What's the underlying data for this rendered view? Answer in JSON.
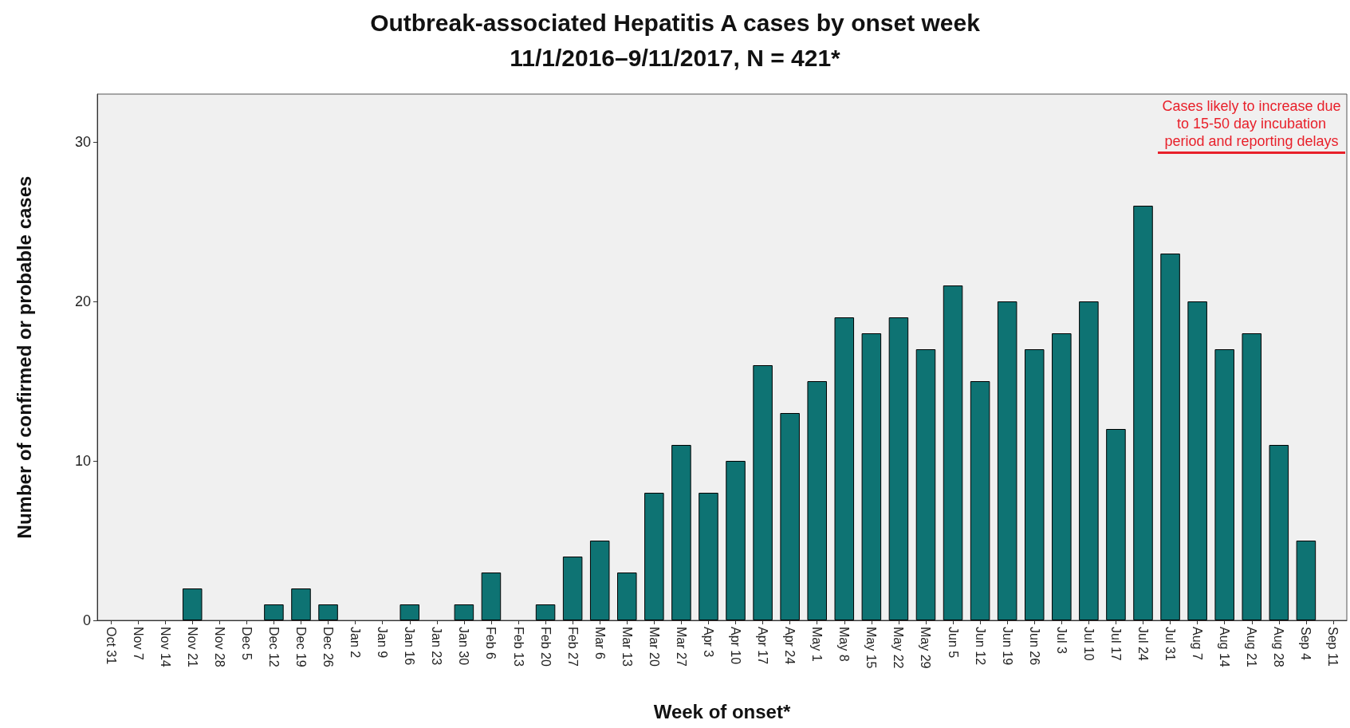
{
  "chart_data": {
    "type": "bar",
    "title": "Outbreak-associated Hepatitis A cases by onset week",
    "subtitle": "11/1/2016–9/11/2017, N = 421*",
    "xlabel": "Week of onset*",
    "ylabel": "Number of confirmed or probable cases",
    "categories": [
      "Oct 31",
      "Nov 7",
      "Nov 14",
      "Nov 21",
      "Nov 28",
      "Dec 5",
      "Dec 12",
      "Dec 19",
      "Dec 26",
      "Jan 2",
      "Jan 9",
      "Jan 16",
      "Jan 23",
      "Jan 30",
      "Feb 6",
      "Feb 13",
      "Feb 20",
      "Feb 27",
      "Mar 6",
      "Mar 13",
      "Mar 20",
      "Mar 27",
      "Apr 3",
      "Apr 10",
      "Apr 17",
      "Apr 24",
      "May 1",
      "May 8",
      "May 15",
      "May 22",
      "May 29",
      "Jun 5",
      "Jun 12",
      "Jun 19",
      "Jun 26",
      "Jul 3",
      "Jul 10",
      "Jul 17",
      "Jul 24",
      "Jul 31",
      "Aug 7",
      "Aug 14",
      "Aug 21",
      "Aug 28",
      "Sep 4",
      "Sep 11"
    ],
    "values": [
      0,
      0,
      0,
      2,
      0,
      0,
      1,
      2,
      1,
      0,
      0,
      1,
      0,
      1,
      3,
      0,
      1,
      4,
      5,
      3,
      8,
      11,
      8,
      10,
      16,
      13,
      15,
      19,
      18,
      19,
      17,
      21,
      15,
      20,
      17,
      18,
      20,
      12,
      26,
      23,
      20,
      17,
      18,
      11,
      5,
      0
    ],
    "color": "#0e7373",
    "ylim": [
      0,
      33
    ],
    "yticks": [
      0,
      10,
      20,
      30
    ],
    "grid": false,
    "annotations": [
      "Cases likely to increase due to 15-50 day incubation period and reporting delays"
    ]
  }
}
